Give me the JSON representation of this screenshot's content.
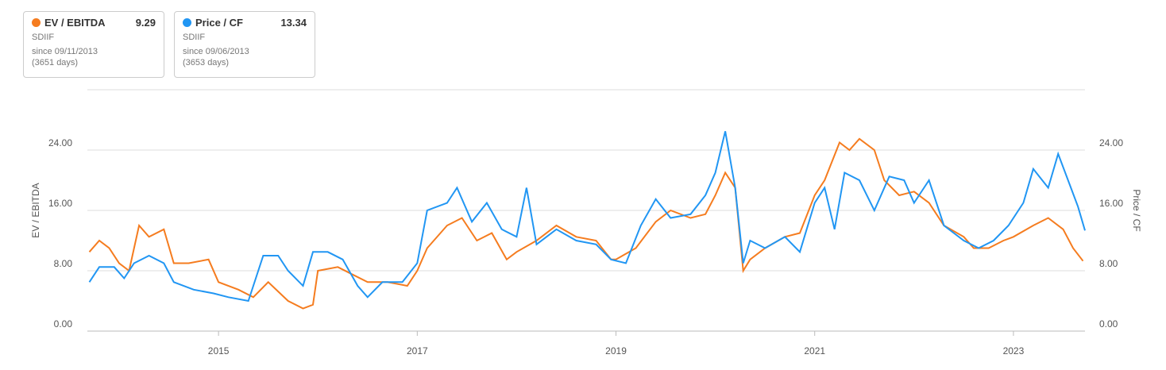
{
  "chart_data": {
    "type": "line",
    "y_label": "EV / EBITDA",
    "y2_label": "Price / CF",
    "xlim": [
      2013.68,
      2023.72
    ],
    "xticks": [
      2015,
      2017,
      2019,
      2021,
      2023
    ],
    "ylim": [
      0,
      32
    ],
    "yticks": [
      {
        "value": 0,
        "label": "0.00"
      },
      {
        "value": 8,
        "label": "8.00"
      },
      {
        "value": 16,
        "label": "16.00"
      },
      {
        "value": 24,
        "label": "24.00"
      }
    ],
    "y2lim": [
      0,
      32
    ],
    "y2ticks": [
      {
        "value": 0,
        "label": "0.00"
      },
      {
        "value": 8,
        "label": "8.00"
      },
      {
        "value": 16,
        "label": "16.00"
      },
      {
        "value": 24,
        "label": "24.00"
      }
    ],
    "grid": true,
    "series": [
      {
        "name": "EV / EBITDA",
        "color": "#f57c1f",
        "latest": 9.29,
        "ticker": "SDIIF",
        "since": "since 09/11/2013",
        "days": "(3651 days)",
        "x": [
          2013.7,
          2013.8,
          2013.9,
          2014.0,
          2014.1,
          2014.2,
          2014.3,
          2014.45,
          2014.55,
          2014.7,
          2014.9,
          2015.0,
          2015.2,
          2015.35,
          2015.5,
          2015.7,
          2015.85,
          2015.95,
          2016.0,
          2016.2,
          2016.35,
          2016.5,
          2016.7,
          2016.9,
          2017.0,
          2017.1,
          2017.3,
          2017.45,
          2017.6,
          2017.75,
          2017.9,
          2018.0,
          2018.2,
          2018.4,
          2018.6,
          2018.8,
          2018.95,
          2019.0,
          2019.2,
          2019.4,
          2019.55,
          2019.75,
          2019.9,
          2020.0,
          2020.1,
          2020.2,
          2020.28,
          2020.35,
          2020.5,
          2020.7,
          2020.85,
          2021.0,
          2021.1,
          2021.25,
          2021.35,
          2021.45,
          2021.6,
          2021.7,
          2021.85,
          2022.0,
          2022.15,
          2022.3,
          2022.5,
          2022.6,
          2022.75,
          2022.9,
          2023.0,
          2023.2,
          2023.35,
          2023.5,
          2023.6,
          2023.7
        ],
        "values": [
          10.5,
          12,
          11,
          9,
          8,
          14,
          12.5,
          13.5,
          9,
          9,
          9.5,
          6.5,
          5.5,
          4.5,
          6.5,
          4,
          3,
          3.5,
          8,
          8.5,
          7.5,
          6.5,
          6.5,
          6,
          8,
          11,
          14,
          15,
          12,
          13,
          9.5,
          10.5,
          12,
          14,
          12.5,
          12,
          9.5,
          9.5,
          11,
          14.5,
          16,
          15,
          15.5,
          18,
          21,
          19,
          8,
          9.5,
          11,
          12.5,
          13,
          18,
          20,
          25,
          24,
          25.5,
          24,
          20,
          18,
          18.5,
          17,
          14,
          12.5,
          11,
          11,
          12,
          12.5,
          14,
          15,
          13.5,
          11,
          9.29
        ]
      },
      {
        "name": "Price / CF",
        "color": "#2196f3",
        "axis": "y2",
        "latest": 13.34,
        "ticker": "SDIIF",
        "since": "since 09/06/2013",
        "days": "(3653 days)",
        "x": [
          2013.7,
          2013.8,
          2013.95,
          2014.05,
          2014.15,
          2014.3,
          2014.45,
          2014.55,
          2014.75,
          2014.95,
          2015.1,
          2015.3,
          2015.45,
          2015.6,
          2015.7,
          2015.85,
          2015.95,
          2016.1,
          2016.25,
          2016.4,
          2016.5,
          2016.65,
          2016.85,
          2017.0,
          2017.1,
          2017.3,
          2017.4,
          2017.55,
          2017.7,
          2017.85,
          2018.0,
          2018.1,
          2018.2,
          2018.4,
          2018.6,
          2018.8,
          2018.95,
          2019.1,
          2019.25,
          2019.4,
          2019.55,
          2019.75,
          2019.9,
          2020.0,
          2020.1,
          2020.2,
          2020.28,
          2020.35,
          2020.5,
          2020.7,
          2020.85,
          2021.0,
          2021.1,
          2021.2,
          2021.3,
          2021.45,
          2021.6,
          2021.75,
          2021.9,
          2022.0,
          2022.15,
          2022.3,
          2022.5,
          2022.65,
          2022.8,
          2022.95,
          2023.1,
          2023.2,
          2023.35,
          2023.45,
          2023.55,
          2023.65,
          2023.72
        ],
        "values": [
          6.5,
          8.5,
          8.5,
          7,
          9,
          10,
          9,
          6.5,
          5.5,
          5,
          4.5,
          4,
          10,
          10,
          8,
          6,
          10.5,
          10.5,
          9.5,
          6,
          4.5,
          6.5,
          6.5,
          9,
          16,
          17,
          19,
          14.5,
          17,
          13.5,
          12.5,
          19,
          11.5,
          13.5,
          12,
          11.5,
          9.5,
          9,
          14,
          17.5,
          15,
          15.5,
          18,
          21,
          26.5,
          19,
          9,
          12,
          11,
          12.5,
          10.5,
          17,
          19,
          13.5,
          21,
          20,
          16,
          20.5,
          20,
          17,
          20,
          14,
          12,
          11,
          12,
          14,
          17,
          21.5,
          19,
          23.5,
          20,
          16.5,
          13.34
        ]
      }
    ]
  }
}
